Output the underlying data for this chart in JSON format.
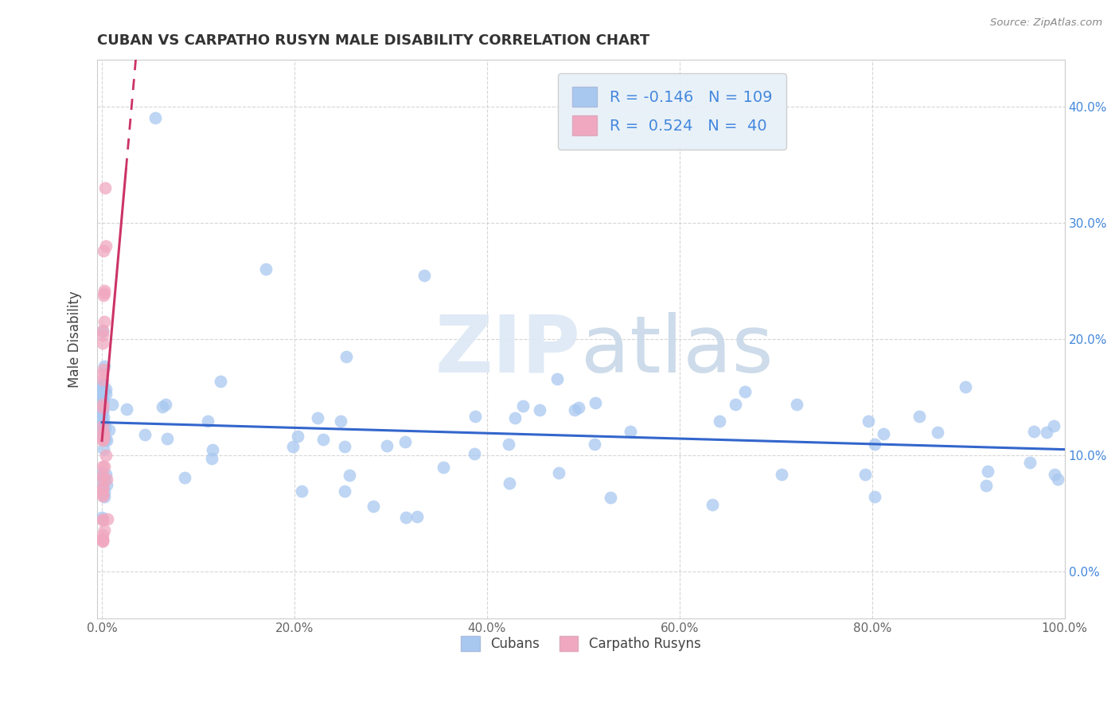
{
  "title": "CUBAN VS CARPATHO RUSYN MALE DISABILITY CORRELATION CHART",
  "source": "Source: ZipAtlas.com",
  "ylabel": "Male Disability",
  "xlim": [
    -0.005,
    1.0
  ],
  "ylim": [
    -0.04,
    0.44
  ],
  "xticks": [
    0.0,
    0.2,
    0.4,
    0.6,
    0.8,
    1.0
  ],
  "xticklabels": [
    "0.0%",
    "20.0%",
    "40.0%",
    "60.0%",
    "80.0%",
    "100.0%"
  ],
  "yticks": [
    0.0,
    0.1,
    0.2,
    0.3,
    0.4
  ],
  "yticklabels_right": [
    "0.0%",
    "10.0%",
    "20.0%",
    "30.0%",
    "40.0%"
  ],
  "R_cuban": -0.146,
  "N_cuban": 109,
  "R_rusyn": 0.524,
  "N_rusyn": 40,
  "cuban_color": "#a8c8f0",
  "rusyn_color": "#f0a8c0",
  "cuban_line_color": "#3366cc",
  "rusyn_line_color": "#cc3366",
  "background_color": "#ffffff",
  "grid_color": "#cccccc",
  "title_color": "#333333",
  "right_axis_color": "#4488dd",
  "watermark_color": "#e0e8f5",
  "legend_box_color": "#e8f0f8",
  "legend_border_color": "#cccccc"
}
